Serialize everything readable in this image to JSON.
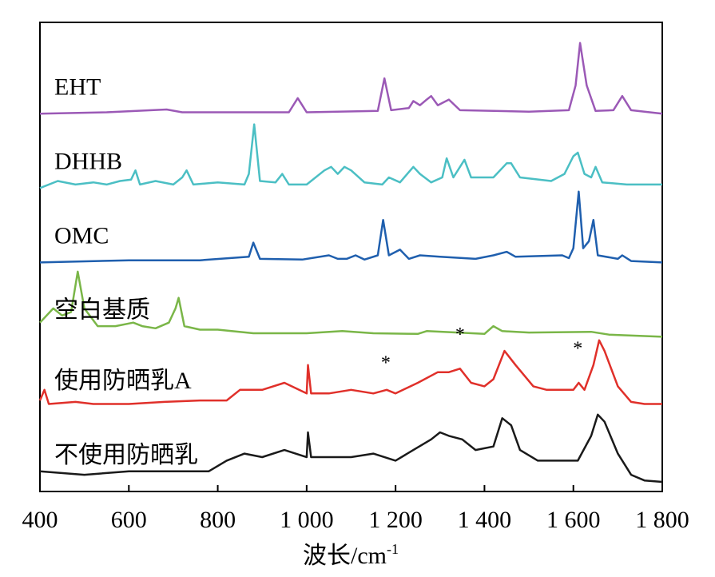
{
  "chart_data": {
    "type": "line",
    "xlabel": "波长/cm",
    "xlabel_sup": "-1",
    "xlim": [
      400,
      1800
    ],
    "x_ticks": [
      {
        "value": 400,
        "label": "400"
      },
      {
        "value": 600,
        "label": "600"
      },
      {
        "value": 800,
        "label": "800"
      },
      {
        "value": 1000,
        "label": "1 000"
      },
      {
        "value": 1200,
        "label": "1 200"
      },
      {
        "value": 1400,
        "label": "1 400"
      },
      {
        "value": 1600,
        "label": "1 600"
      },
      {
        "value": 1800,
        "label": "1 800"
      }
    ],
    "ylim": [
      0,
      6.4
    ],
    "y_ticks_shown": false,
    "grid": false,
    "legend": "none",
    "series": [
      {
        "name": "EHT",
        "color": "#9b59b6",
        "offset": 5.2,
        "points": [
          [
            400,
            0.0
          ],
          [
            550,
            0.02
          ],
          [
            685,
            0.06
          ],
          [
            720,
            0.02
          ],
          [
            960,
            0.02
          ],
          [
            980,
            0.22
          ],
          [
            1000,
            0.02
          ],
          [
            1160,
            0.04
          ],
          [
            1175,
            0.5
          ],
          [
            1190,
            0.05
          ],
          [
            1230,
            0.08
          ],
          [
            1240,
            0.18
          ],
          [
            1255,
            0.12
          ],
          [
            1270,
            0.2
          ],
          [
            1280,
            0.25
          ],
          [
            1295,
            0.12
          ],
          [
            1320,
            0.2
          ],
          [
            1345,
            0.05
          ],
          [
            1500,
            0.03
          ],
          [
            1590,
            0.05
          ],
          [
            1605,
            0.4
          ],
          [
            1615,
            1.0
          ],
          [
            1630,
            0.4
          ],
          [
            1650,
            0.04
          ],
          [
            1690,
            0.05
          ],
          [
            1710,
            0.25
          ],
          [
            1730,
            0.05
          ],
          [
            1800,
            0.0
          ]
        ]
      },
      {
        "name": "DHHB",
        "color": "#4bbfc4",
        "offset": 4.15,
        "points": [
          [
            400,
            0.0
          ],
          [
            440,
            0.1
          ],
          [
            480,
            0.05
          ],
          [
            520,
            0.08
          ],
          [
            550,
            0.05
          ],
          [
            580,
            0.1
          ],
          [
            605,
            0.12
          ],
          [
            615,
            0.25
          ],
          [
            625,
            0.05
          ],
          [
            660,
            0.1
          ],
          [
            700,
            0.05
          ],
          [
            720,
            0.15
          ],
          [
            730,
            0.25
          ],
          [
            745,
            0.05
          ],
          [
            800,
            0.08
          ],
          [
            860,
            0.05
          ],
          [
            870,
            0.2
          ],
          [
            882,
            0.9
          ],
          [
            895,
            0.1
          ],
          [
            930,
            0.08
          ],
          [
            945,
            0.2
          ],
          [
            960,
            0.05
          ],
          [
            1000,
            0.05
          ],
          [
            1040,
            0.25
          ],
          [
            1055,
            0.3
          ],
          [
            1070,
            0.2
          ],
          [
            1085,
            0.3
          ],
          [
            1100,
            0.25
          ],
          [
            1130,
            0.08
          ],
          [
            1170,
            0.05
          ],
          [
            1185,
            0.15
          ],
          [
            1210,
            0.08
          ],
          [
            1240,
            0.3
          ],
          [
            1255,
            0.2
          ],
          [
            1280,
            0.08
          ],
          [
            1305,
            0.15
          ],
          [
            1315,
            0.42
          ],
          [
            1330,
            0.15
          ],
          [
            1355,
            0.4
          ],
          [
            1370,
            0.15
          ],
          [
            1420,
            0.15
          ],
          [
            1450,
            0.35
          ],
          [
            1460,
            0.35
          ],
          [
            1480,
            0.15
          ],
          [
            1550,
            0.1
          ],
          [
            1580,
            0.2
          ],
          [
            1600,
            0.45
          ],
          [
            1610,
            0.5
          ],
          [
            1625,
            0.2
          ],
          [
            1640,
            0.15
          ],
          [
            1650,
            0.3
          ],
          [
            1665,
            0.08
          ],
          [
            1720,
            0.05
          ],
          [
            1800,
            0.05
          ]
        ]
      },
      {
        "name": "OMC",
        "color": "#1f5fae",
        "offset": 3.1,
        "points": [
          [
            400,
            0.0
          ],
          [
            600,
            0.03
          ],
          [
            760,
            0.03
          ],
          [
            870,
            0.08
          ],
          [
            880,
            0.28
          ],
          [
            895,
            0.05
          ],
          [
            990,
            0.04
          ],
          [
            1050,
            0.1
          ],
          [
            1070,
            0.05
          ],
          [
            1090,
            0.05
          ],
          [
            1110,
            0.1
          ],
          [
            1130,
            0.04
          ],
          [
            1160,
            0.1
          ],
          [
            1172,
            0.6
          ],
          [
            1185,
            0.1
          ],
          [
            1210,
            0.18
          ],
          [
            1230,
            0.05
          ],
          [
            1255,
            0.1
          ],
          [
            1300,
            0.08
          ],
          [
            1380,
            0.05
          ],
          [
            1420,
            0.1
          ],
          [
            1450,
            0.15
          ],
          [
            1470,
            0.08
          ],
          [
            1575,
            0.1
          ],
          [
            1590,
            0.06
          ],
          [
            1600,
            0.2
          ],
          [
            1612,
            1.0
          ],
          [
            1622,
            0.2
          ],
          [
            1635,
            0.3
          ],
          [
            1645,
            0.6
          ],
          [
            1655,
            0.1
          ],
          [
            1700,
            0.05
          ],
          [
            1710,
            0.1
          ],
          [
            1730,
            0.02
          ],
          [
            1800,
            0.0
          ]
        ]
      },
      {
        "name": "空白基质",
        "color": "#7ab648",
        "offset": 2.05,
        "points": [
          [
            400,
            0.2
          ],
          [
            430,
            0.4
          ],
          [
            450,
            0.3
          ],
          [
            470,
            0.35
          ],
          [
            485,
            0.92
          ],
          [
            500,
            0.4
          ],
          [
            530,
            0.15
          ],
          [
            570,
            0.15
          ],
          [
            610,
            0.2
          ],
          [
            630,
            0.15
          ],
          [
            660,
            0.12
          ],
          [
            690,
            0.2
          ],
          [
            705,
            0.4
          ],
          [
            712,
            0.55
          ],
          [
            725,
            0.15
          ],
          [
            760,
            0.1
          ],
          [
            800,
            0.1
          ],
          [
            880,
            0.05
          ],
          [
            1000,
            0.05
          ],
          [
            1080,
            0.08
          ],
          [
            1150,
            0.05
          ],
          [
            1250,
            0.04
          ],
          [
            1270,
            0.08
          ],
          [
            1400,
            0.04
          ],
          [
            1420,
            0.15
          ],
          [
            1440,
            0.08
          ],
          [
            1500,
            0.06
          ],
          [
            1640,
            0.07
          ],
          [
            1680,
            0.03
          ],
          [
            1800,
            0.0
          ]
        ]
      },
      {
        "name": "使用防晒乳A",
        "color": "#e0302a",
        "offset": 1.05,
        "points": [
          [
            400,
            0.1
          ],
          [
            410,
            0.25
          ],
          [
            420,
            0.05
          ],
          [
            480,
            0.08
          ],
          [
            520,
            0.05
          ],
          [
            600,
            0.05
          ],
          [
            680,
            0.08
          ],
          [
            760,
            0.1
          ],
          [
            820,
            0.1
          ],
          [
            850,
            0.25
          ],
          [
            900,
            0.25
          ],
          [
            950,
            0.35
          ],
          [
            1000,
            0.2
          ],
          [
            1003,
            0.6
          ],
          [
            1010,
            0.2
          ],
          [
            1050,
            0.2
          ],
          [
            1100,
            0.25
          ],
          [
            1150,
            0.2
          ],
          [
            1180,
            0.25
          ],
          [
            1200,
            0.2
          ],
          [
            1250,
            0.35
          ],
          [
            1295,
            0.5
          ],
          [
            1320,
            0.5
          ],
          [
            1345,
            0.55
          ],
          [
            1370,
            0.35
          ],
          [
            1400,
            0.3
          ],
          [
            1420,
            0.4
          ],
          [
            1445,
            0.8
          ],
          [
            1470,
            0.6
          ],
          [
            1510,
            0.3
          ],
          [
            1540,
            0.25
          ],
          [
            1600,
            0.25
          ],
          [
            1612,
            0.35
          ],
          [
            1625,
            0.25
          ],
          [
            1645,
            0.6
          ],
          [
            1658,
            0.95
          ],
          [
            1670,
            0.8
          ],
          [
            1700,
            0.3
          ],
          [
            1730,
            0.08
          ],
          [
            1760,
            0.05
          ],
          [
            1800,
            0.05
          ]
        ]
      },
      {
        "name": "不使用防晒乳",
        "color": "#1a1a1a",
        "offset": 0.0,
        "points": [
          [
            400,
            0.15
          ],
          [
            500,
            0.1
          ],
          [
            600,
            0.15
          ],
          [
            700,
            0.15
          ],
          [
            780,
            0.15
          ],
          [
            820,
            0.3
          ],
          [
            860,
            0.4
          ],
          [
            900,
            0.35
          ],
          [
            950,
            0.45
          ],
          [
            1000,
            0.35
          ],
          [
            1003,
            0.7
          ],
          [
            1010,
            0.35
          ],
          [
            1050,
            0.35
          ],
          [
            1100,
            0.35
          ],
          [
            1150,
            0.4
          ],
          [
            1200,
            0.3
          ],
          [
            1240,
            0.45
          ],
          [
            1280,
            0.6
          ],
          [
            1300,
            0.7
          ],
          [
            1320,
            0.65
          ],
          [
            1350,
            0.6
          ],
          [
            1380,
            0.45
          ],
          [
            1420,
            0.5
          ],
          [
            1440,
            0.9
          ],
          [
            1460,
            0.8
          ],
          [
            1480,
            0.45
          ],
          [
            1520,
            0.3
          ],
          [
            1560,
            0.3
          ],
          [
            1610,
            0.3
          ],
          [
            1640,
            0.65
          ],
          [
            1655,
            0.95
          ],
          [
            1670,
            0.85
          ],
          [
            1700,
            0.4
          ],
          [
            1730,
            0.1
          ],
          [
            1760,
            0.02
          ],
          [
            1800,
            0.0
          ]
        ]
      }
    ],
    "annotations": [
      {
        "text": "*",
        "x": 1178,
        "series_index": 4,
        "dy": 0.55
      },
      {
        "text": "*",
        "x": 1345,
        "series_index": 4,
        "dy": 0.95
      },
      {
        "text": "*",
        "x": 1610,
        "series_index": 4,
        "dy": 0.75
      }
    ]
  }
}
